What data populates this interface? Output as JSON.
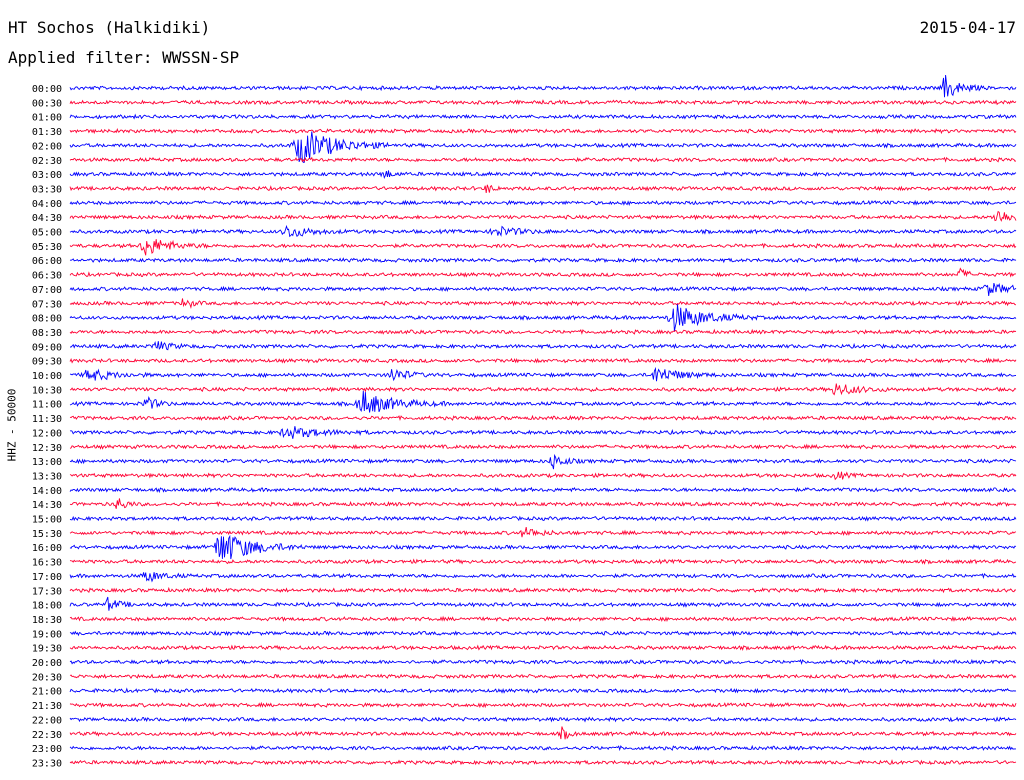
{
  "header": {
    "station": "HT Sochos (Halkidiki)",
    "date": "2015-04-17",
    "filter": "Applied filter: WWSSN-SP"
  },
  "colors": {
    "odd_trace": "#0000ff",
    "even_trace": "#ff0033"
  },
  "chart_data": {
    "type": "line",
    "title": "HT Sochos (Halkidiki)",
    "ylabel": "HHZ - 50000",
    "xlabel": "",
    "grid": false,
    "legend": "none",
    "row_labels": [
      "00:00",
      "00:30",
      "01:00",
      "01:30",
      "02:00",
      "02:30",
      "03:00",
      "03:30",
      "04:00",
      "04:30",
      "05:00",
      "05:30",
      "06:00",
      "06:30",
      "07:00",
      "07:30",
      "08:00",
      "08:30",
      "09:00",
      "09:30",
      "10:00",
      "10:30",
      "11:00",
      "11:30",
      "12:00",
      "12:30",
      "13:00",
      "13:30",
      "14:00",
      "14:30",
      "15:00",
      "15:30",
      "16:00",
      "16:30",
      "17:00",
      "17:30",
      "18:00",
      "18:30",
      "19:00",
      "19:30",
      "20:00",
      "20:30",
      "21:00",
      "21:30",
      "22:00",
      "22:30",
      "23:00",
      "23:30"
    ],
    "events": [
      {
        "row": 0,
        "pos": 0.925,
        "amp": 12,
        "width": 0.02
      },
      {
        "row": 4,
        "pos": 0.245,
        "amp": 18,
        "width": 0.045
      },
      {
        "row": 6,
        "pos": 0.33,
        "amp": 6,
        "width": 0.01
      },
      {
        "row": 7,
        "pos": 0.44,
        "amp": 5,
        "width": 0.008
      },
      {
        "row": 9,
        "pos": 0.98,
        "amp": 8,
        "width": 0.02
      },
      {
        "row": 10,
        "pos": 0.23,
        "amp": 6,
        "width": 0.03
      },
      {
        "row": 10,
        "pos": 0.45,
        "amp": 5,
        "width": 0.03
      },
      {
        "row": 11,
        "pos": 0.08,
        "amp": 10,
        "width": 0.03
      },
      {
        "row": 13,
        "pos": 0.94,
        "amp": 6,
        "width": 0.01
      },
      {
        "row": 14,
        "pos": 0.97,
        "amp": 6,
        "width": 0.03
      },
      {
        "row": 15,
        "pos": 0.12,
        "amp": 7,
        "width": 0.01
      },
      {
        "row": 16,
        "pos": 0.64,
        "amp": 13,
        "width": 0.04
      },
      {
        "row": 18,
        "pos": 0.09,
        "amp": 5,
        "width": 0.02
      },
      {
        "row": 20,
        "pos": 0.02,
        "amp": 6,
        "width": 0.03
      },
      {
        "row": 20,
        "pos": 0.34,
        "amp": 7,
        "width": 0.02
      },
      {
        "row": 20,
        "pos": 0.62,
        "amp": 8,
        "width": 0.03
      },
      {
        "row": 21,
        "pos": 0.81,
        "amp": 6,
        "width": 0.03
      },
      {
        "row": 22,
        "pos": 0.08,
        "amp": 7,
        "width": 0.015
      },
      {
        "row": 22,
        "pos": 0.31,
        "amp": 12,
        "width": 0.04
      },
      {
        "row": 24,
        "pos": 0.23,
        "amp": 6,
        "width": 0.04
      },
      {
        "row": 26,
        "pos": 0.51,
        "amp": 8,
        "width": 0.015
      },
      {
        "row": 27,
        "pos": 0.81,
        "amp": 5,
        "width": 0.01
      },
      {
        "row": 29,
        "pos": 0.05,
        "amp": 8,
        "width": 0.01
      },
      {
        "row": 31,
        "pos": 0.48,
        "amp": 5,
        "width": 0.02
      },
      {
        "row": 32,
        "pos": 0.16,
        "amp": 17,
        "width": 0.04
      },
      {
        "row": 34,
        "pos": 0.08,
        "amp": 6,
        "width": 0.02
      },
      {
        "row": 36,
        "pos": 0.04,
        "amp": 6,
        "width": 0.015
      },
      {
        "row": 45,
        "pos": 0.52,
        "amp": 6,
        "width": 0.01
      }
    ]
  }
}
